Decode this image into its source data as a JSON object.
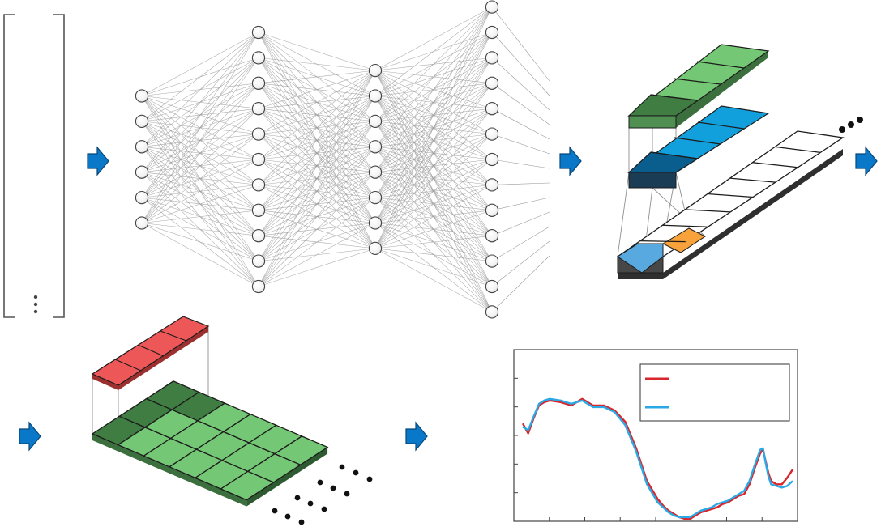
{
  "diagram": {
    "network": {
      "layers": [
        6,
        11,
        8,
        13
      ]
    },
    "colors": {
      "arrow": "#0a78c8",
      "arrow_edge": "#07487a",
      "node_fill": "#ffffff",
      "node_stroke": "#444444",
      "edge": "#9a9a9a",
      "green": "#74c774",
      "green_dark": "#3f7d43",
      "blue": "#12a0dc",
      "blue_dark": "#0a5e8e",
      "blue_light": "#58a9e0",
      "orange": "#f7a23a",
      "red": "#ee5757",
      "gray_dark": "#474747"
    }
  },
  "chart_data": {
    "type": "line",
    "title": "",
    "xlabel": "",
    "ylabel": "",
    "xlim": [
      0,
      100
    ],
    "ylim": [
      0,
      1
    ],
    "grid": false,
    "legend": {
      "placement": "top-right",
      "entries": [
        "",
        ""
      ]
    },
    "series": [
      {
        "name": "",
        "color": "#d9262c",
        "x": [
          0,
          2,
          4,
          6,
          8,
          10,
          14,
          18,
          22,
          26,
          30,
          34,
          38,
          42,
          46,
          50,
          52,
          54,
          56,
          58,
          60,
          62,
          64,
          66,
          68,
          70,
          72,
          74,
          76,
          78,
          80,
          82,
          84,
          86,
          88,
          89,
          90,
          91,
          92,
          94,
          96,
          98,
          100
        ],
        "y": [
          0.59,
          0.53,
          0.62,
          0.7,
          0.72,
          0.73,
          0.72,
          0.7,
          0.74,
          0.7,
          0.7,
          0.67,
          0.6,
          0.44,
          0.24,
          0.13,
          0.09,
          0.06,
          0.04,
          0.02,
          0.01,
          0.01,
          0.03,
          0.05,
          0.06,
          0.07,
          0.08,
          0.1,
          0.11,
          0.13,
          0.15,
          0.16,
          0.22,
          0.32,
          0.41,
          0.43,
          0.36,
          0.29,
          0.24,
          0.22,
          0.22,
          0.26,
          0.31
        ]
      },
      {
        "name": "",
        "color": "#2aa9e6",
        "x": [
          0,
          2,
          4,
          6,
          8,
          10,
          14,
          18,
          22,
          26,
          30,
          34,
          38,
          42,
          46,
          50,
          52,
          54,
          56,
          58,
          60,
          62,
          64,
          66,
          68,
          70,
          72,
          74,
          76,
          78,
          80,
          82,
          84,
          86,
          88,
          89,
          90,
          91,
          92,
          94,
          96,
          98,
          100
        ],
        "y": [
          0.57,
          0.55,
          0.63,
          0.71,
          0.73,
          0.74,
          0.73,
          0.71,
          0.73,
          0.69,
          0.69,
          0.66,
          0.58,
          0.42,
          0.22,
          0.11,
          0.08,
          0.05,
          0.03,
          0.02,
          0.02,
          0.02,
          0.04,
          0.06,
          0.07,
          0.08,
          0.1,
          0.11,
          0.12,
          0.14,
          0.16,
          0.18,
          0.24,
          0.34,
          0.43,
          0.44,
          0.35,
          0.27,
          0.22,
          0.21,
          0.2,
          0.21,
          0.24
        ]
      }
    ]
  }
}
